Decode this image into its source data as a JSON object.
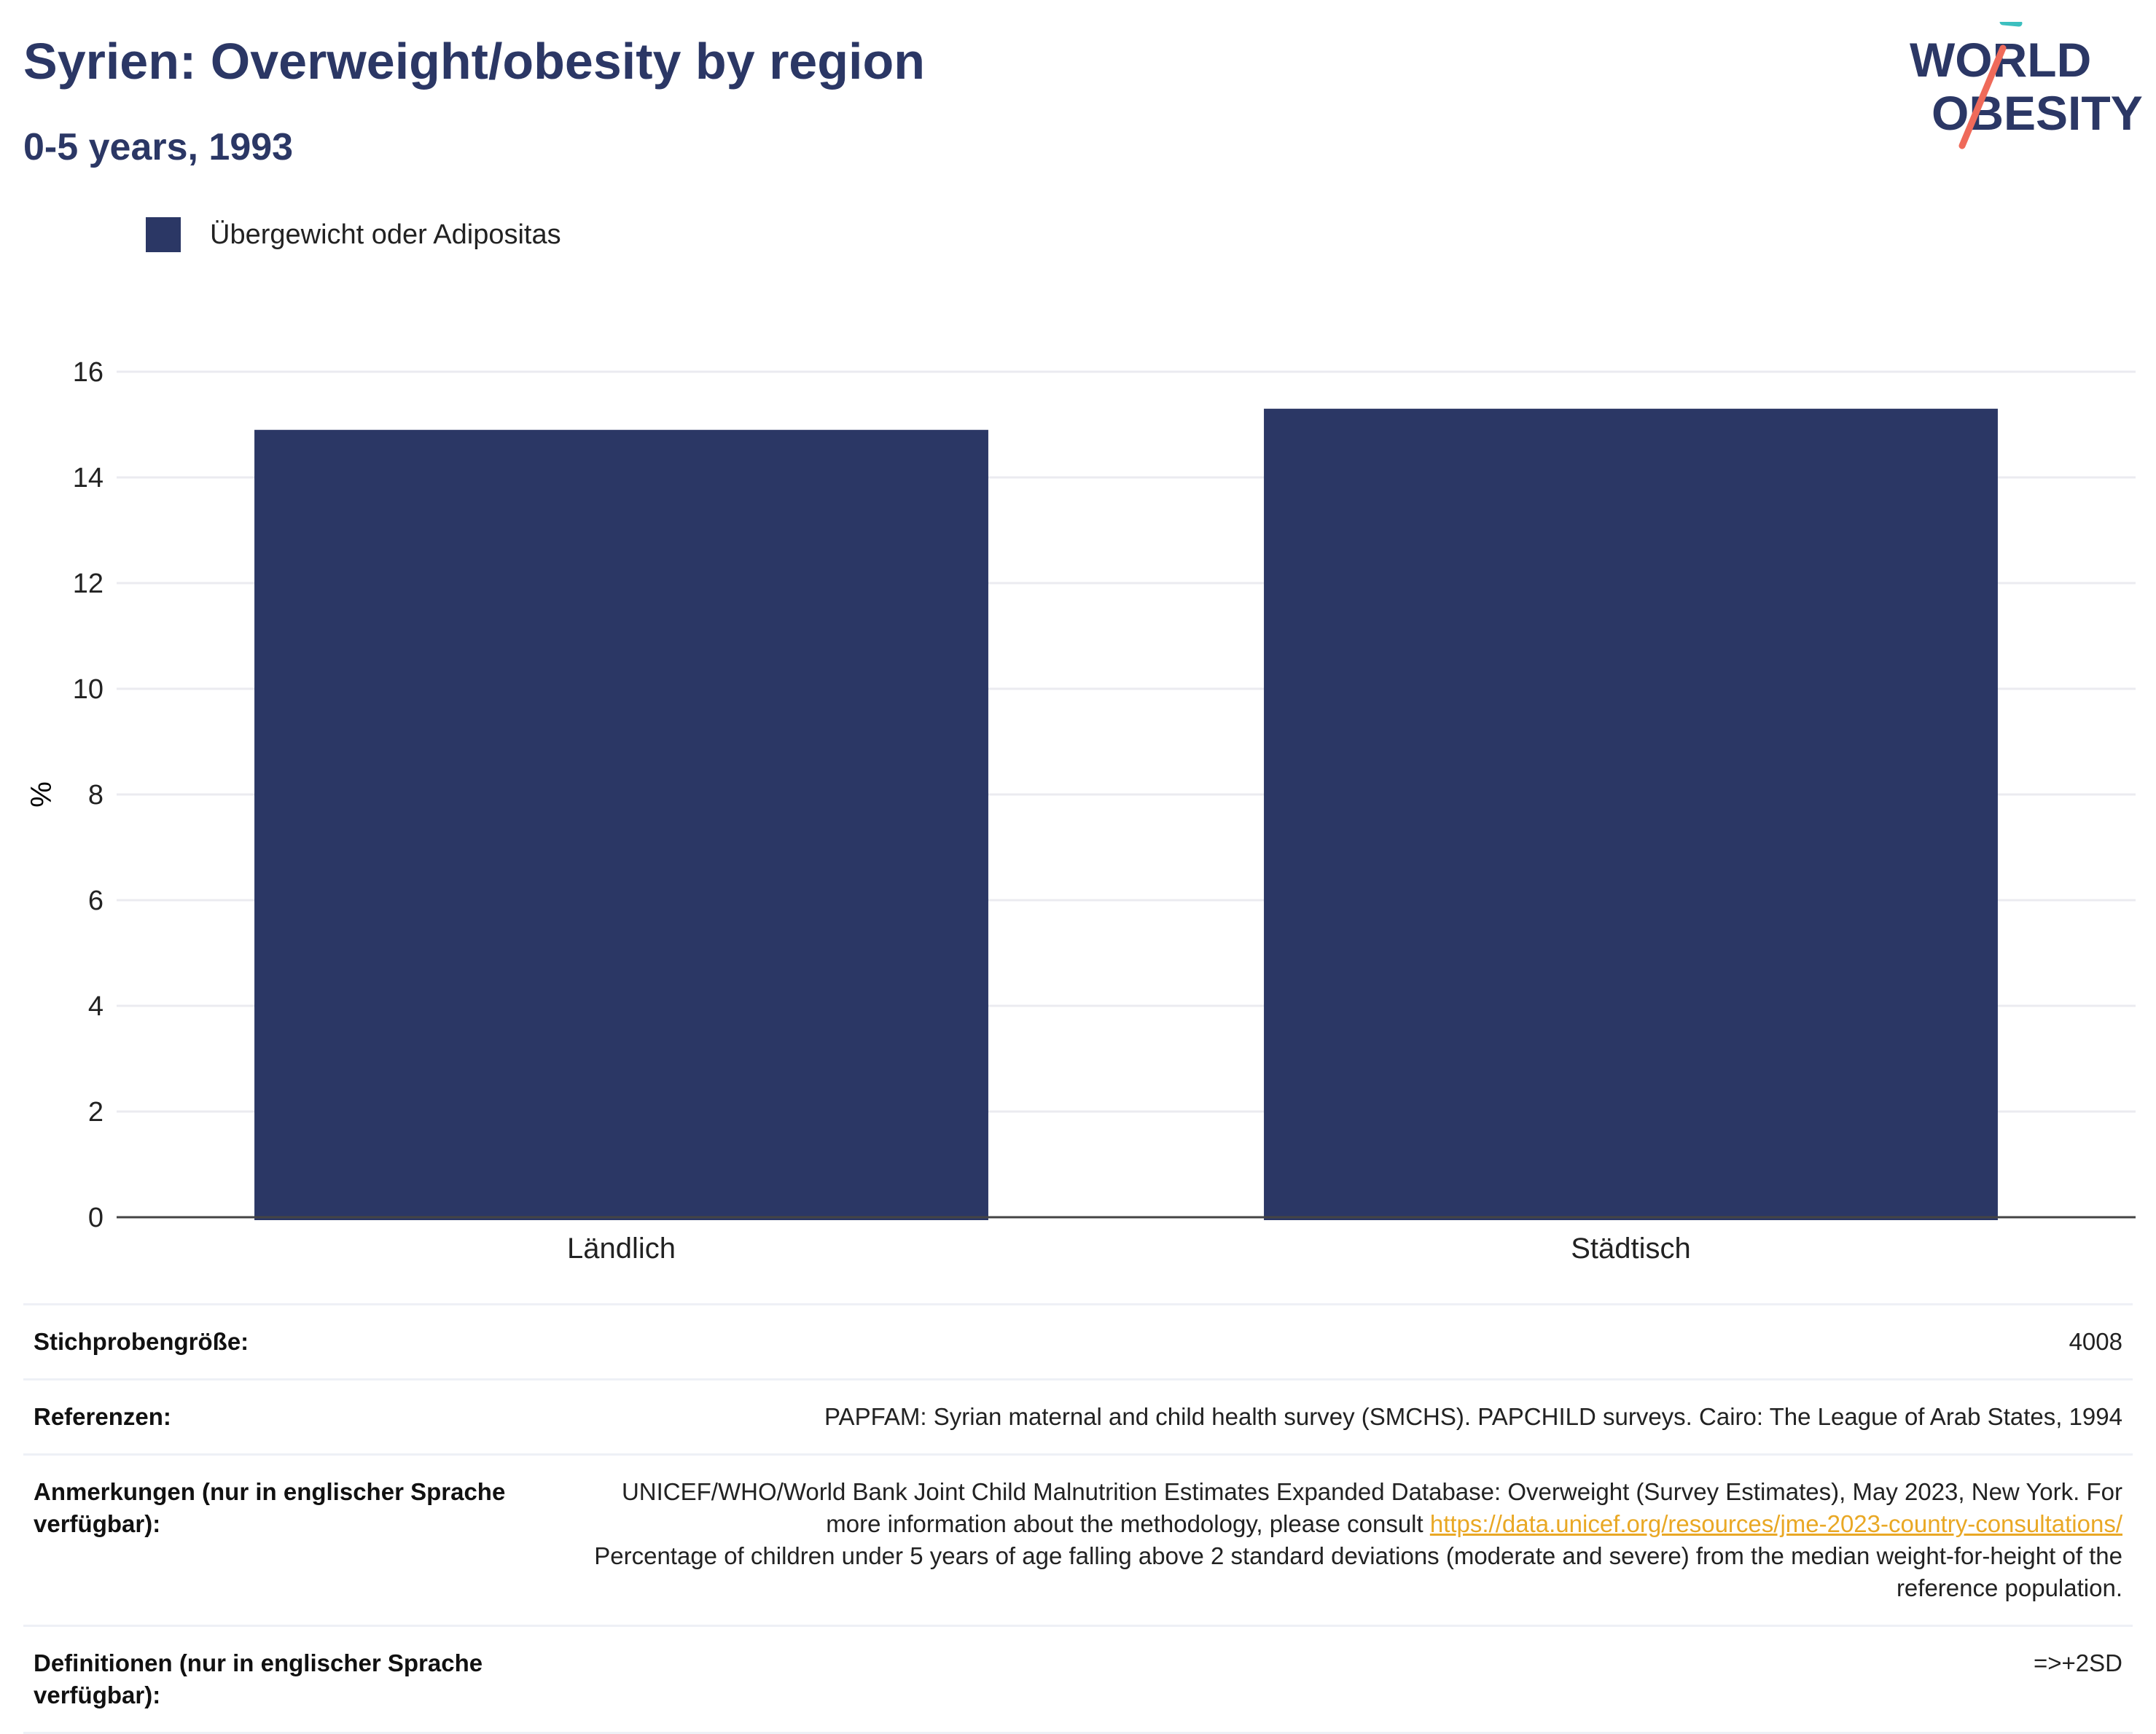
{
  "header": {
    "title": "Syrien: Overweight/obesity by region",
    "subtitle": "0-5 years, 1993"
  },
  "logo": {
    "line1": "WORLD",
    "line2": "OBESITY",
    "colors": {
      "text": "#2b3765",
      "teal": "#3cbfbf",
      "coral": "#ef6a5a"
    }
  },
  "colors": {
    "bar": "#2b3765",
    "grid": "#ebebf0",
    "axis": "#444444",
    "accent_link": "#e9a825"
  },
  "chart_data": {
    "type": "bar",
    "categories": [
      "Ländlich",
      "Städtisch"
    ],
    "series": [
      {
        "name": "Übergewicht oder Adipositas",
        "values": [
          14.9,
          15.3
        ]
      }
    ],
    "ylabel": "%",
    "ylim": [
      0,
      16
    ],
    "yticks": [
      0,
      2,
      4,
      6,
      8,
      10,
      12,
      14,
      16
    ],
    "grid": true,
    "legend": "top-left"
  },
  "meta": {
    "sample_size": {
      "label": "Stichprobengröße:",
      "value": "4008"
    },
    "references": {
      "label": "Referenzen:",
      "value": "PAPFAM: Syrian maternal and child health survey (SMCHS). PAPCHILD surveys. Cairo: The League of Arab States, 1994"
    },
    "notes": {
      "label": "Anmerkungen (nur in englischer Sprache verfügbar):",
      "text1": "UNICEF/WHO/World Bank Joint Child Malnutrition Estimates Expanded Database: Overweight (Survey Estimates), May 2023, New York. For more information about the methodology, please consult ",
      "link": "https://data.unicef.org/resources/jme-2023-country-consultations/",
      "text2": "Percentage of children under 5 years of age falling above 2 standard deviations (moderate and severe) from the median weight-for-height of the reference population."
    },
    "definitions": {
      "label": "Definitionen (nur in englischer Sprache verfügbar):",
      "value": "=>+2SD"
    }
  }
}
